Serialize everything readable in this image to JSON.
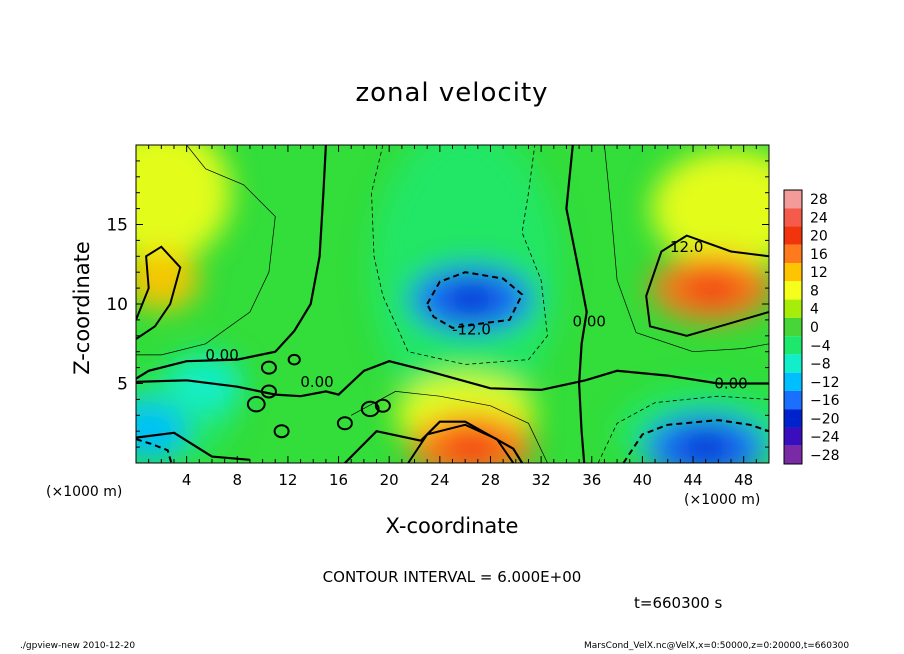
{
  "chart_data": {
    "type": "contour",
    "title": "zonal velocity",
    "xlabel": "X-coordinate",
    "ylabel": "Z-coordinate",
    "x_unit_left": "(×1000 m)",
    "x_unit_right": "(×1000 m)",
    "xlim": [
      0,
      50
    ],
    "ylim": [
      0,
      20
    ],
    "x_ticks": [
      4,
      8,
      12,
      16,
      20,
      24,
      28,
      32,
      36,
      40,
      44,
      48
    ],
    "y_ticks": [
      5,
      10,
      15
    ],
    "colorbar_levels": [
      28,
      24,
      20,
      16,
      12,
      8,
      4,
      0,
      -4,
      -8,
      -12,
      -16,
      -20,
      -24,
      -28
    ],
    "colorbar_colors": [
      "#f39a9a",
      "#f45b4a",
      "#f2340d",
      "#ff7a1c",
      "#ffc400",
      "#f6ff1a",
      "#a6ee0a",
      "#46d638",
      "#1ee86c",
      "#12eeca",
      "#00bfff",
      "#1a6fff",
      "#0022cc",
      "#3a0dbd",
      "#7a2aa5"
    ],
    "contour_interval": 6.0,
    "contour_labels": [
      {
        "text": "12.0",
        "x": 43.5,
        "z": 13.6
      },
      {
        "text": "-12.0",
        "x": 26.5,
        "z": 8.4
      },
      {
        "text": "0.00",
        "x": 35.8,
        "z": 8.9
      },
      {
        "text": "0.00",
        "x": 6.8,
        "z": 6.8
      },
      {
        "text": "0.00",
        "x": 14.3,
        "z": 5.1
      },
      {
        "text": "0.00",
        "x": 47.0,
        "z": 5.0
      }
    ],
    "features": [
      {
        "kind": "max",
        "x": 2.0,
        "z": 11.5,
        "value": 12
      },
      {
        "kind": "max",
        "x": 45.5,
        "z": 11.0,
        "value": 16
      },
      {
        "kind": "max",
        "x": 26.5,
        "z": 1.0,
        "value": 16
      },
      {
        "kind": "min",
        "x": 26.5,
        "z": 10.3,
        "value": -16
      },
      {
        "kind": "min",
        "x": 45.0,
        "z": 1.0,
        "value": -16
      },
      {
        "kind": "min",
        "x": 1.0,
        "z": 2.0,
        "value": -12
      },
      {
        "kind": "min",
        "x": 5.5,
        "z": 5.0,
        "value": -10
      }
    ]
  },
  "labels": {
    "contour_interval": "CONTOUR INTERVAL = 6.000E+00",
    "time": "t=660300 s",
    "footer_left": "./gpview-new  2010-12-20",
    "footer_right": "MarsCond_VelX.nc@VelX,x=0:50000,z=0:20000,t=660300"
  },
  "colors": {
    "background": "#ffffff",
    "field_base": "#33dd3a",
    "axis": "#000000"
  }
}
